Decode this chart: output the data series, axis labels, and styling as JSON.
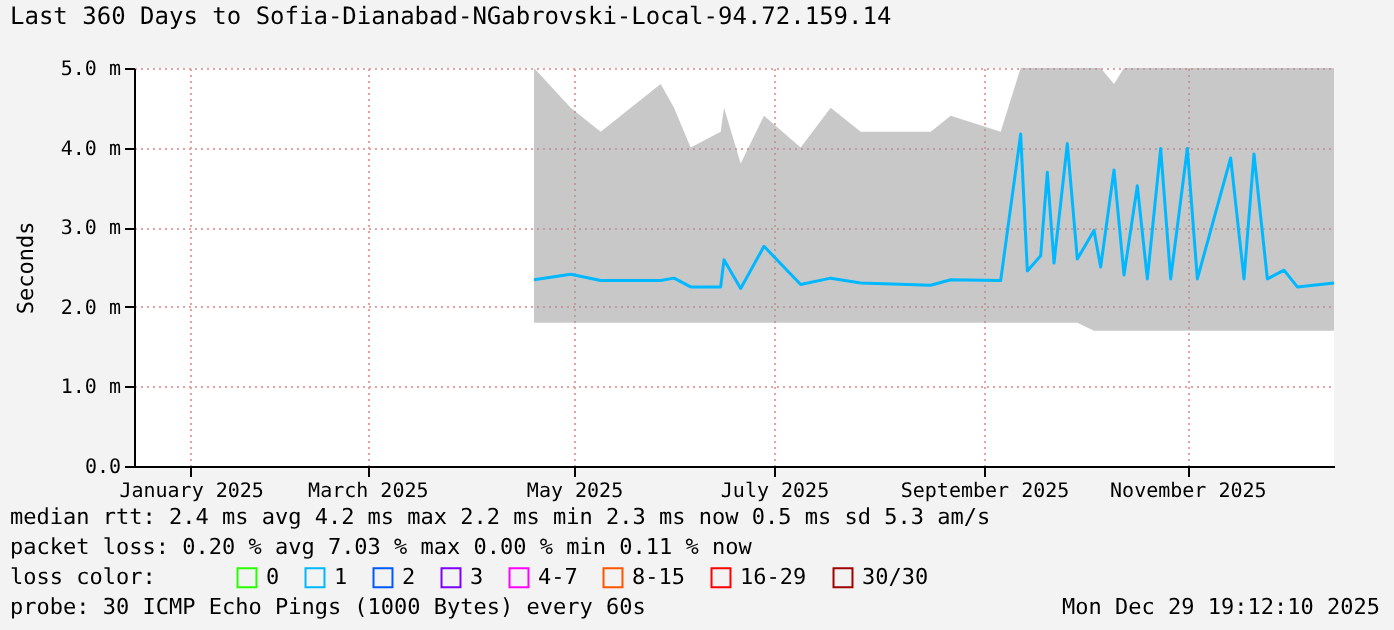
{
  "chart_data": {
    "type": "line",
    "title": "Last 360 Days to Sofia-Dianabad-NGabrovski-Local-94.72.159.14",
    "ylabel": "Seconds",
    "x": [
      "2025-05-03",
      "2025-05-14",
      "2025-05-23",
      "2025-06-10",
      "2025-06-14",
      "2025-06-19",
      "2025-06-28",
      "2025-06-29",
      "2025-07-04",
      "2025-07-11",
      "2025-07-22",
      "2025-07-31",
      "2025-08-09",
      "2025-08-30",
      "2025-09-05",
      "2025-09-20",
      "2025-09-26",
      "2025-09-28",
      "2025-10-02",
      "2025-10-04",
      "2025-10-06",
      "2025-10-10",
      "2025-10-13",
      "2025-10-18",
      "2025-10-20",
      "2025-10-24",
      "2025-10-27",
      "2025-10-31",
      "2025-11-03",
      "2025-11-07",
      "2025-11-10",
      "2025-11-15",
      "2025-11-18",
      "2025-11-28",
      "2025-12-02",
      "2025-12-05",
      "2025-12-09",
      "2025-12-14",
      "2025-12-18",
      "2025-12-29"
    ],
    "series": [
      {
        "name": "0",
        "color": "#26ff00",
        "values": [
          null,
          null,
          null,
          null,
          null,
          null,
          null,
          null,
          null,
          null,
          null,
          null,
          null,
          null,
          null,
          null,
          null,
          null,
          null,
          null,
          null,
          null,
          null,
          null,
          null,
          null,
          null,
          null,
          null,
          null,
          null,
          null,
          null,
          null,
          null,
          null,
          null,
          null,
          null,
          null
        ]
      },
      {
        "name": "1",
        "color": "#00b8ff",
        "values": [
          2.34,
          2.41,
          2.33,
          2.33,
          2.36,
          2.25,
          2.25,
          2.59,
          2.23,
          2.76,
          2.28,
          2.36,
          2.3,
          2.27,
          2.34,
          2.33,
          4.17,
          2.45,
          2.64,
          3.69,
          2.55,
          4.05,
          2.6,
          2.96,
          2.5,
          3.72,
          2.4,
          3.52,
          2.35,
          3.99,
          2.35,
          3.99,
          2.35,
          3.87,
          2.35,
          3.92,
          2.35,
          2.46,
          2.25,
          2.3
        ],
        "lower": [
          1.8,
          1.8,
          1.8,
          1.8,
          1.8,
          1.8,
          1.8,
          1.8,
          1.8,
          1.8,
          1.8,
          1.8,
          1.8,
          1.8,
          1.8,
          1.8,
          1.8,
          1.8,
          1.8,
          1.8,
          1.8,
          1.8,
          1.8,
          1.7,
          1.7,
          1.7,
          1.7,
          1.7,
          1.7,
          1.7,
          1.7,
          1.7,
          1.7,
          1.7,
          1.7,
          1.7,
          1.7,
          1.7,
          1.7,
          1.7
        ],
        "upper": [
          5,
          4.5,
          4.2,
          4.8,
          4.5,
          4,
          4.2,
          4.5,
          3.8,
          4.4,
          4,
          4.5,
          4.2,
          4.2,
          4.4,
          4.2,
          5,
          5,
          5,
          5,
          5,
          5,
          5,
          5,
          5,
          4.8,
          5,
          5,
          5,
          5,
          5,
          5,
          5,
          5,
          5,
          5,
          5,
          5,
          5,
          5
        ]
      },
      {
        "name": "2",
        "color": "#0059ff",
        "values": [
          null,
          null,
          null,
          null,
          null,
          null,
          null,
          null,
          null,
          null,
          null,
          null,
          null,
          null,
          null,
          null,
          null,
          null,
          null,
          null,
          null,
          null,
          null,
          null,
          null,
          null,
          null,
          null,
          null,
          null,
          null,
          null,
          null,
          null,
          null,
          null,
          null,
          null,
          null,
          null
        ]
      },
      {
        "name": "3",
        "color": "#7e00ff",
        "values": [
          null,
          null,
          null,
          null,
          null,
          null,
          null,
          null,
          null,
          null,
          null,
          null,
          null,
          null,
          null,
          null,
          null,
          null,
          null,
          null,
          null,
          null,
          null,
          null,
          null,
          null,
          null,
          null,
          null,
          null,
          null,
          null,
          null,
          null,
          null,
          null,
          null,
          null,
          null,
          null
        ]
      },
      {
        "name": "4-7",
        "color": "#ff00ff",
        "values": [
          null,
          null,
          null,
          null,
          null,
          null,
          null,
          null,
          null,
          null,
          null,
          null,
          null,
          null,
          null,
          null,
          null,
          null,
          null,
          null,
          null,
          null,
          null,
          null,
          null,
          null,
          null,
          null,
          null,
          null,
          null,
          null,
          null,
          null,
          null,
          null,
          null,
          null,
          null,
          null
        ]
      },
      {
        "name": "8-15",
        "color": "#ff5500",
        "values": [
          null,
          null,
          null,
          null,
          null,
          null,
          null,
          null,
          null,
          null,
          null,
          null,
          null,
          null,
          null,
          null,
          null,
          null,
          null,
          null,
          null,
          null,
          null,
          null,
          null,
          null,
          null,
          null,
          null,
          null,
          null,
          null,
          null,
          null,
          null,
          null,
          null,
          null,
          null,
          null
        ]
      },
      {
        "name": "16-29",
        "color": "#ff0000",
        "values": [
          null,
          null,
          null,
          null,
          null,
          null,
          null,
          null,
          null,
          null,
          null,
          null,
          null,
          null,
          null,
          null,
          null,
          null,
          null,
          null,
          null,
          null,
          null,
          null,
          null,
          null,
          null,
          null,
          null,
          null,
          null,
          null,
          null,
          null,
          null,
          null,
          null,
          null,
          null,
          null
        ]
      },
      {
        "name": "30/30",
        "color": "#a10000",
        "values": [
          null,
          null,
          null,
          null,
          null,
          null,
          null,
          null,
          null,
          null,
          null,
          null,
          null,
          null,
          null,
          null,
          null,
          null,
          null,
          null,
          null,
          null,
          null,
          null,
          null,
          null,
          null,
          null,
          null,
          null,
          null,
          null,
          null,
          null,
          null,
          null,
          null,
          null,
          null,
          null
        ]
      }
    ],
    "legend_title": "loss color:",
    "legend": "bottom left",
    "xlim": [
      "2025-01-03",
      "2025-12-29"
    ],
    "xticks": [
      {
        "value": "2025-01-20",
        "label": "January 2025"
      },
      {
        "value": "2025-03-14",
        "label": "March 2025"
      },
      {
        "value": "2025-05-15",
        "label": "May 2025"
      },
      {
        "value": "2025-07-14",
        "label": "July 2025"
      },
      {
        "value": "2025-09-15",
        "label": "September 2025"
      },
      {
        "value": "2025-11-15",
        "label": "November 2025"
      }
    ],
    "ylim": [
      0,
      5
    ],
    "yticks": [
      {
        "value": 0,
        "label": "0.0"
      },
      {
        "value": 1,
        "label": "1.0 m"
      },
      {
        "value": 2,
        "label": "2.0 m"
      },
      {
        "value": 3,
        "label": "3.0 m"
      },
      {
        "value": 4,
        "label": "4.0 m"
      },
      {
        "value": 5,
        "label": "5.0 m"
      }
    ],
    "grid": true,
    "marker": "none",
    "line_style": "solid",
    "annotations": [
      "median rtt:  2.4 ms avg  4.2 ms max  2.2 ms min  2.3 ms now  0.5 ms sd  5.3   am/s",
      "packet loss: 0.20 % avg  7.03 % max  0.00 % min  0.11 % now",
      "probe:       30 ICMP Echo Pings (1000 Bytes) every 60s",
      "Mon Dec 29 19:12:10 2025"
    ]
  }
}
